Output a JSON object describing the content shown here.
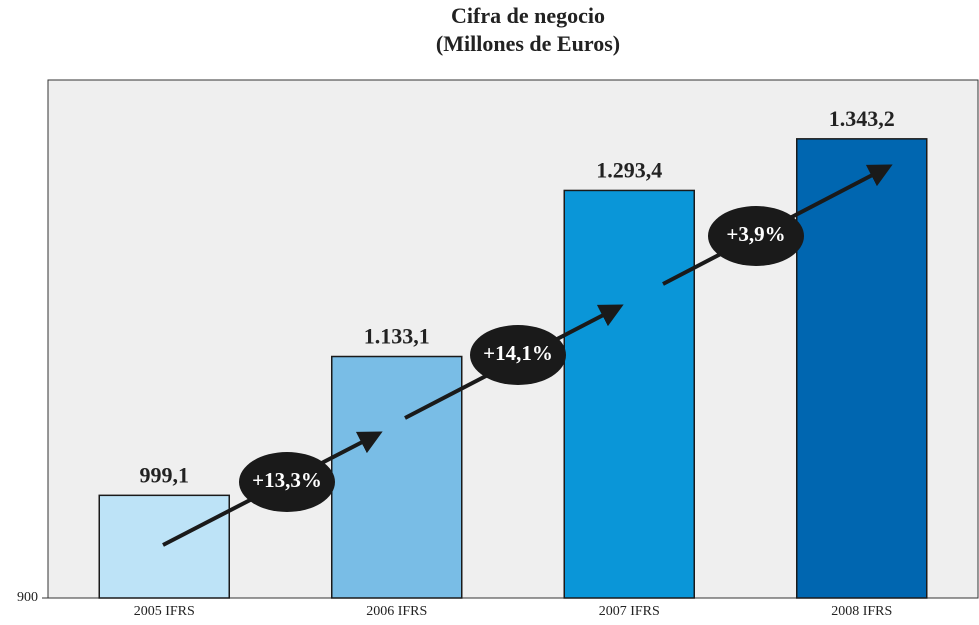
{
  "chart_data": {
    "type": "bar",
    "title": [
      "Cifra de negocio",
      "(Millones de Euros)"
    ],
    "categories": [
      "2005 IFRS",
      "2006 IFRS",
      "2007 IFRS",
      "2008 IFRS"
    ],
    "values": [
      999.1,
      1133.1,
      1293.4,
      1343.2
    ],
    "value_labels": [
      "999,1",
      "1.133,1",
      "1.293,4",
      "1.343,2"
    ],
    "colors": [
      "#bde3f7",
      "#79bde6",
      "#0a96d8",
      "#0066b0"
    ],
    "ylim": [
      900,
      1400
    ],
    "yticks": [
      900
    ],
    "annotations": [
      "+13,3%",
      "+14,1%",
      "+3,9%"
    ]
  }
}
